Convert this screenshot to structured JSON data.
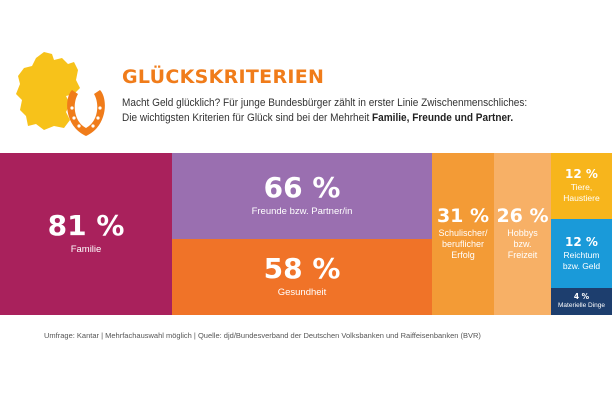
{
  "title": "GLÜCKSKRITERIEN",
  "intro": {
    "line1": "Macht Geld glücklich? Für junge Bundesbürger zählt in erster Linie Zwischenmenschliches:",
    "line2": "Die wichtigsten Kriterien für Glück sind bei der Mehrheit ",
    "line2_bold": "Familie, Freunde und Partner."
  },
  "colors": {
    "title": "#f07c1a",
    "map": "#f7c21a",
    "horseshoe": "#f07c1a",
    "familie": "#a9215c",
    "freunde": "#9a6fb0",
    "gesundheit": "#f07328",
    "schule": "#f39b36",
    "hobbys": "#f7b066",
    "tiere": "#f7b51c",
    "reichtum": "#1a9ad9",
    "materielle": "#1d3e6e"
  },
  "chart_data": {
    "type": "treemap",
    "unit": "%",
    "items": [
      {
        "key": "familie",
        "value": 81,
        "label": "Familie"
      },
      {
        "key": "freunde",
        "value": 66,
        "label": "Freunde bzw. Partner/in"
      },
      {
        "key": "gesundheit",
        "value": 58,
        "label": "Gesundheit"
      },
      {
        "key": "schule",
        "value": 31,
        "label": "Schulischer/\nberuflicher\nErfolg"
      },
      {
        "key": "hobbys",
        "value": 26,
        "label": "Hobbys\nbzw.\nFreizeit"
      },
      {
        "key": "tiere",
        "value": 12,
        "label": "Tiere,\nHaustiere"
      },
      {
        "key": "reichtum",
        "value": 12,
        "label": "Reichtum\nbzw. Geld"
      },
      {
        "key": "materielle",
        "value": 4,
        "label": "Materielle Dinge"
      }
    ]
  },
  "footnote": "Umfrage: Kantar | Mehrfachauswahl möglich | Quelle: djd/Bundesverband der Deutschen Volksbanken und Raiffeisenbanken (BVR)"
}
